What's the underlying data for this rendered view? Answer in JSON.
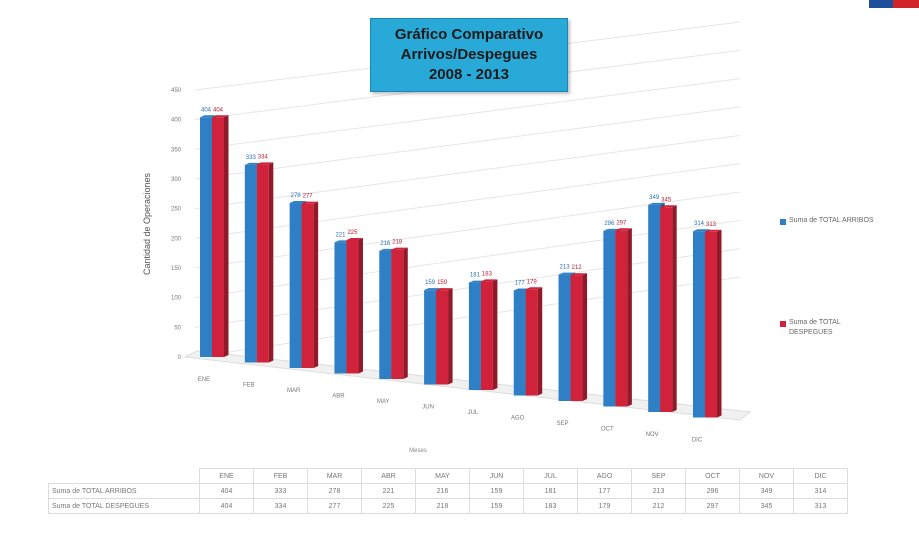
{
  "title": [
    "Gráfico Comparativo",
    "Arrivos/Despegues",
    "2008 - 2013"
  ],
  "colors": {
    "arribos": "#2f7fc6",
    "despegues": "#d0233b",
    "title_bg": "#29a9d8"
  },
  "chart_data": {
    "type": "bar",
    "title": "Gráfico Comparativo Arrivos/Despegues 2008 - 2013",
    "xlabel": "Meses",
    "ylabel": "Cantidad de Operaciones",
    "ylim": [
      0,
      450
    ],
    "yticks": [
      0,
      50,
      100,
      150,
      200,
      250,
      300,
      350,
      400,
      450
    ],
    "categories": [
      "ENE",
      "FEB",
      "MAR",
      "ABR",
      "MAY",
      "JUN",
      "JUL",
      "AGO",
      "SEP",
      "OCT",
      "NOV",
      "DIC"
    ],
    "series": [
      {
        "name": "Suma de TOTAL ARRIBOS",
        "values": [
          404,
          333,
          278,
          221,
          216,
          159,
          181,
          177,
          213,
          296,
          349,
          314
        ]
      },
      {
        "name": "Suma de TOTAL DESPEGUES",
        "values": [
          404,
          334,
          277,
          225,
          218,
          159,
          183,
          179,
          212,
          297,
          345,
          313
        ]
      }
    ],
    "legend": "right",
    "grid": true
  }
}
